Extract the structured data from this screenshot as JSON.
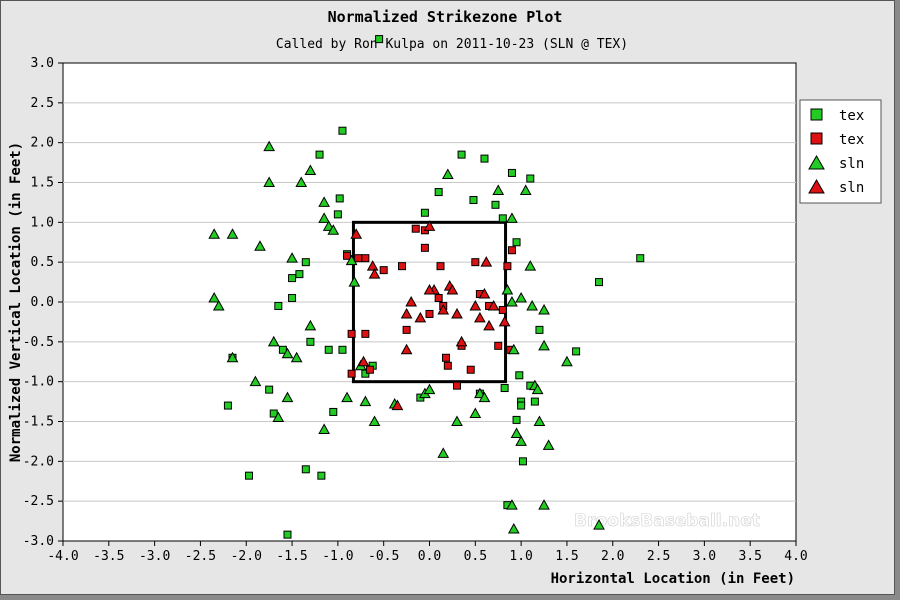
{
  "chart_data": {
    "type": "scatter",
    "title": "Normalized Strikezone Plot",
    "subtitle": "Called by Ron Kulpa on 2011-10-23 (SLN @ TEX)",
    "xlabel": "Horizontal Location (in Feet)",
    "ylabel": "Normalized Vertical Location (in Feet)",
    "xlim": [
      -4.0,
      4.0
    ],
    "ylim": [
      -3.0,
      3.0
    ],
    "x_ticks": [
      "-4.0",
      "-3.5",
      "-3.0",
      "-2.5",
      "-2.0",
      "-1.5",
      "-1.0",
      "-0.5",
      "0.0",
      "0.5",
      "1.0",
      "1.5",
      "2.0",
      "2.5",
      "3.0",
      "3.5",
      "4.0"
    ],
    "y_ticks": [
      "3.0",
      "2.5",
      "2.0",
      "1.5",
      "1.0",
      "0.5",
      "0.0",
      "-0.5",
      "-1.0",
      "-1.5",
      "-2.0",
      "-2.5",
      "-3.0"
    ],
    "grid": "horizontal",
    "legend_position": "top-right",
    "strike_zone": {
      "x": [
        -0.83,
        0.83
      ],
      "y": [
        -1.0,
        1.0
      ]
    },
    "watermark": "BrooksBaseball.net",
    "series": [
      {
        "name": "tex",
        "marker": "square",
        "color": "#22cc22",
        "points": [
          [
            -2.15,
            -0.7
          ],
          [
            -2.2,
            -1.3
          ],
          [
            -1.97,
            -2.18
          ],
          [
            -1.75,
            -1.1
          ],
          [
            -1.7,
            -1.4
          ],
          [
            -1.6,
            -0.6
          ],
          [
            -1.65,
            -0.05
          ],
          [
            -1.5,
            0.05
          ],
          [
            -1.35,
            0.5
          ],
          [
            -1.55,
            -2.92
          ],
          [
            -1.5,
            0.3
          ],
          [
            -1.42,
            0.35
          ],
          [
            -1.35,
            -2.1
          ],
          [
            -1.2,
            1.85
          ],
          [
            -1.18,
            -2.18
          ],
          [
            -1.1,
            -0.6
          ],
          [
            -1.05,
            -1.38
          ],
          [
            -1.0,
            1.1
          ],
          [
            -0.9,
            0.6
          ],
          [
            -0.98,
            1.3
          ],
          [
            -1.3,
            -0.5
          ],
          [
            -0.95,
            -0.6
          ],
          [
            -0.62,
            -0.8
          ],
          [
            -0.55,
            3.3
          ],
          [
            -0.7,
            -0.9
          ],
          [
            -0.1,
            -1.2
          ],
          [
            -0.05,
            1.12
          ],
          [
            0.1,
            1.38
          ],
          [
            0.35,
            1.85
          ],
          [
            0.48,
            1.28
          ],
          [
            0.6,
            1.8
          ],
          [
            0.72,
            1.22
          ],
          [
            0.9,
            1.62
          ],
          [
            0.95,
            0.75
          ],
          [
            1.1,
            1.55
          ],
          [
            0.55,
            -1.15
          ],
          [
            0.98,
            -0.92
          ],
          [
            0.95,
            -1.48
          ],
          [
            1.0,
            -1.25
          ],
          [
            1.0,
            -1.3
          ],
          [
            0.82,
            -1.08
          ],
          [
            1.1,
            -1.05
          ],
          [
            1.2,
            -0.35
          ],
          [
            1.6,
            -0.62
          ],
          [
            1.85,
            0.25
          ],
          [
            2.3,
            0.55
          ],
          [
            1.02,
            -2.0
          ],
          [
            0.85,
            -2.55
          ],
          [
            1.15,
            -1.25
          ],
          [
            -0.95,
            2.15
          ],
          [
            0.8,
            1.05
          ]
        ]
      },
      {
        "name": "tex",
        "marker": "square",
        "color": "#dd1111",
        "points": [
          [
            -0.9,
            0.58
          ],
          [
            -0.85,
            -0.4
          ],
          [
            -0.78,
            0.55
          ],
          [
            -0.7,
            0.55
          ],
          [
            -0.7,
            -0.4
          ],
          [
            -0.85,
            -0.9
          ],
          [
            -0.5,
            0.4
          ],
          [
            -0.3,
            0.45
          ],
          [
            -0.25,
            -0.35
          ],
          [
            -0.15,
            0.92
          ],
          [
            -0.05,
            0.9
          ],
          [
            -0.05,
            0.68
          ],
          [
            0.0,
            -0.15
          ],
          [
            0.1,
            0.05
          ],
          [
            0.12,
            0.45
          ],
          [
            0.15,
            -0.05
          ],
          [
            0.2,
            -0.8
          ],
          [
            0.3,
            -1.05
          ],
          [
            0.35,
            -0.55
          ],
          [
            0.45,
            -0.85
          ],
          [
            0.5,
            0.5
          ],
          [
            0.55,
            0.1
          ],
          [
            0.65,
            -0.05
          ],
          [
            0.75,
            -0.55
          ],
          [
            0.85,
            0.45
          ],
          [
            0.9,
            0.65
          ],
          [
            -0.65,
            -0.85
          ],
          [
            0.18,
            -0.7
          ],
          [
            0.8,
            -0.1
          ],
          [
            0.88,
            -0.6
          ]
        ]
      },
      {
        "name": "sln",
        "marker": "triangle",
        "color": "#22cc22",
        "points": [
          [
            -2.35,
            0.05
          ],
          [
            -2.3,
            -0.05
          ],
          [
            -2.35,
            0.85
          ],
          [
            -2.15,
            0.85
          ],
          [
            -2.15,
            -0.7
          ],
          [
            -1.9,
            -1.0
          ],
          [
            -1.85,
            0.7
          ],
          [
            -1.75,
            1.95
          ],
          [
            -1.75,
            1.5
          ],
          [
            -1.7,
            -0.5
          ],
          [
            -1.65,
            -1.45
          ],
          [
            -1.55,
            -0.65
          ],
          [
            -1.55,
            -1.2
          ],
          [
            -1.5,
            0.55
          ],
          [
            -1.45,
            -0.7
          ],
          [
            -1.4,
            1.5
          ],
          [
            -1.3,
            1.65
          ],
          [
            -1.3,
            -0.3
          ],
          [
            -1.15,
            1.25
          ],
          [
            -1.15,
            1.05
          ],
          [
            -1.1,
            0.95
          ],
          [
            -1.05,
            0.9
          ],
          [
            -1.15,
            -1.6
          ],
          [
            -0.85,
            0.52
          ],
          [
            -0.82,
            0.25
          ],
          [
            -0.7,
            -1.25
          ],
          [
            -0.6,
            -1.5
          ],
          [
            -0.38,
            -1.28
          ],
          [
            -0.05,
            -1.15
          ],
          [
            0.15,
            -1.9
          ],
          [
            0.2,
            1.6
          ],
          [
            0.3,
            -1.5
          ],
          [
            0.5,
            -1.4
          ],
          [
            0.55,
            -1.15
          ],
          [
            0.6,
            -1.2
          ],
          [
            0.75,
            1.4
          ],
          [
            0.85,
            0.15
          ],
          [
            0.9,
            0.0
          ],
          [
            0.9,
            1.05
          ],
          [
            1.0,
            0.05
          ],
          [
            1.05,
            1.4
          ],
          [
            1.1,
            0.45
          ],
          [
            1.12,
            -0.05
          ],
          [
            1.15,
            -1.05
          ],
          [
            1.18,
            -1.1
          ],
          [
            1.2,
            -1.5
          ],
          [
            1.25,
            -0.1
          ],
          [
            1.3,
            -1.8
          ],
          [
            1.25,
            -0.55
          ],
          [
            1.5,
            -0.75
          ],
          [
            0.92,
            -0.6
          ],
          [
            0.95,
            -1.65
          ],
          [
            1.0,
            -1.75
          ],
          [
            0.9,
            -2.55
          ],
          [
            0.92,
            -2.85
          ],
          [
            1.25,
            -2.55
          ],
          [
            1.85,
            -2.8
          ],
          [
            -0.9,
            -1.2
          ],
          [
            0.0,
            -1.1
          ],
          [
            -0.75,
            -0.8
          ]
        ]
      },
      {
        "name": "sln",
        "marker": "triangle",
        "color": "#dd1111",
        "points": [
          [
            -0.8,
            0.85
          ],
          [
            -0.62,
            0.45
          ],
          [
            -0.6,
            0.35
          ],
          [
            -0.72,
            -0.75
          ],
          [
            -0.35,
            -1.3
          ],
          [
            -0.25,
            -0.6
          ],
          [
            -0.25,
            -0.15
          ],
          [
            -0.2,
            0.0
          ],
          [
            0.0,
            0.95
          ],
          [
            0.05,
            0.15
          ],
          [
            0.15,
            -0.1
          ],
          [
            0.22,
            0.2
          ],
          [
            0.25,
            0.15
          ],
          [
            0.3,
            -0.15
          ],
          [
            0.35,
            -0.5
          ],
          [
            0.5,
            -0.05
          ],
          [
            0.55,
            -0.2
          ],
          [
            0.6,
            0.1
          ],
          [
            0.62,
            0.5
          ],
          [
            0.65,
            -0.3
          ],
          [
            0.7,
            -0.05
          ],
          [
            0.82,
            -0.25
          ],
          [
            0.0,
            0.15
          ],
          [
            -0.1,
            -0.2
          ]
        ]
      }
    ]
  }
}
